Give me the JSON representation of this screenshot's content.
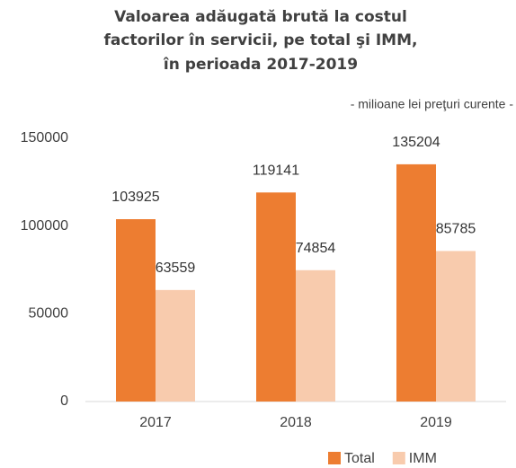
{
  "chart_data": {
    "type": "bar",
    "title": [
      "Valoarea adăugată brută la costul",
      "factorilor în servicii, pe total şi IMM,",
      "în perioada 2017-2019"
    ],
    "subtitle": "- milioane lei preţuri curente -",
    "categories": [
      "2017",
      "2018",
      "2019"
    ],
    "series": [
      {
        "name": "Total",
        "color": "#ed7d31",
        "values": [
          103925,
          119141,
          135204
        ]
      },
      {
        "name": "IMM",
        "color": "#f8cbad",
        "values": [
          63559,
          74854,
          85785
        ]
      }
    ],
    "ylim": [
      0,
      150000
    ],
    "yticks": [
      0,
      50000,
      100000,
      150000
    ],
    "grid": false,
    "legend": "bottom-right"
  }
}
